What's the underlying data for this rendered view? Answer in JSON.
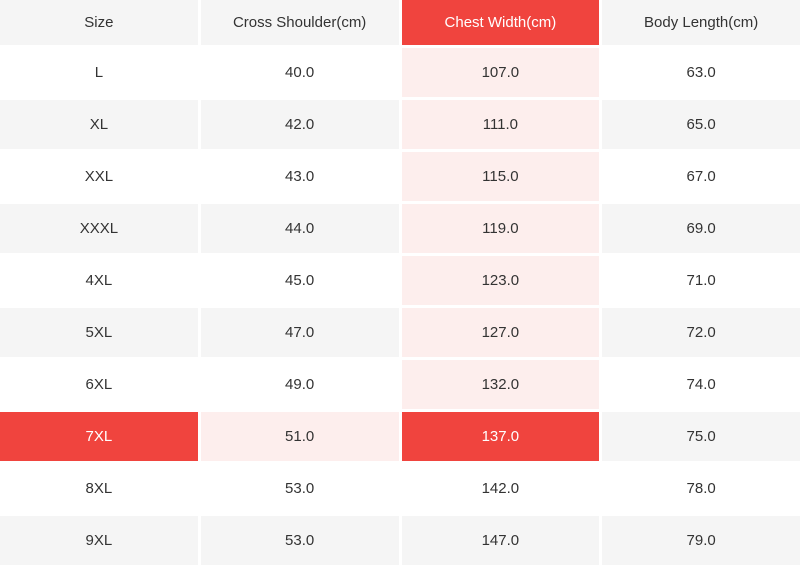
{
  "colors": {
    "accent_red": "#f0443e",
    "highlight_pink": "#fdeeed",
    "row_gray": "#f5f5f5",
    "row_white": "#ffffff",
    "text": "#333333",
    "text_on_red": "#ffffff"
  },
  "table": {
    "columns": [
      "Size",
      "Cross Shoulder(cm)",
      "Chest Width(cm)",
      "Body Length(cm)"
    ],
    "rows": [
      {
        "cells": [
          "L",
          "40.0",
          "107.0",
          "63.0"
        ]
      },
      {
        "cells": [
          "XL",
          "42.0",
          "111.0",
          "65.0"
        ]
      },
      {
        "cells": [
          "XXL",
          "43.0",
          "115.0",
          "67.0"
        ]
      },
      {
        "cells": [
          "XXXL",
          "44.0",
          "119.0",
          "69.0"
        ]
      },
      {
        "cells": [
          "4XL",
          "45.0",
          "123.0",
          "71.0"
        ]
      },
      {
        "cells": [
          "5XL",
          "47.0",
          "127.0",
          "72.0"
        ]
      },
      {
        "cells": [
          "6XL",
          "49.0",
          "132.0",
          "74.0"
        ]
      },
      {
        "cells": [
          "7XL",
          "51.0",
          "137.0",
          "75.0"
        ]
      },
      {
        "cells": [
          "8XL",
          "53.0",
          "142.0",
          "78.0"
        ]
      },
      {
        "cells": [
          "9XL",
          "53.0",
          "147.0",
          "79.0"
        ]
      }
    ],
    "selection": {
      "row_index": 7,
      "col_index": 2,
      "row_label": "7XL",
      "col_label": "Chest Width(cm)",
      "selected_value": "137.0"
    }
  }
}
